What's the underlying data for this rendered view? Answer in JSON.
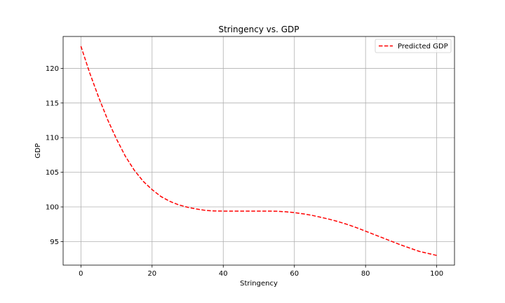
{
  "chart_data": {
    "type": "line",
    "title": "Stringency vs. GDP",
    "xlabel": "Stringency",
    "ylabel": "GDP",
    "xlim": [
      -5,
      105
    ],
    "ylim": [
      91.6,
      124.6
    ],
    "xticks": [
      0,
      20,
      40,
      60,
      80,
      100
    ],
    "yticks": [
      95,
      100,
      105,
      110,
      115,
      120
    ],
    "grid": true,
    "legend_position": "upper-right",
    "series": [
      {
        "name": "Predicted GDP",
        "color": "#ff0000",
        "line_style": "dashed",
        "x": [
          0,
          2.5,
          5,
          7.5,
          10,
          12.5,
          15,
          17.5,
          20,
          22.5,
          25,
          27.5,
          30,
          32.5,
          35,
          37.5,
          40,
          42.5,
          45,
          47.5,
          50,
          52.5,
          55,
          57.5,
          60,
          62.5,
          65,
          67.5,
          70,
          72.5,
          75,
          77.5,
          80,
          82.5,
          85,
          87.5,
          90,
          92.5,
          95,
          97.5,
          100
        ],
        "y": [
          123.2,
          119.3,
          115.8,
          112.6,
          109.8,
          107.3,
          105.3,
          103.7,
          102.5,
          101.5,
          100.8,
          100.3,
          99.95,
          99.7,
          99.5,
          99.42,
          99.4,
          99.4,
          99.4,
          99.4,
          99.4,
          99.4,
          99.38,
          99.3,
          99.18,
          99.0,
          98.78,
          98.5,
          98.2,
          97.85,
          97.45,
          97.0,
          96.5,
          96.0,
          95.5,
          95.0,
          94.5,
          94.05,
          93.6,
          93.3,
          93.0
        ]
      }
    ]
  }
}
